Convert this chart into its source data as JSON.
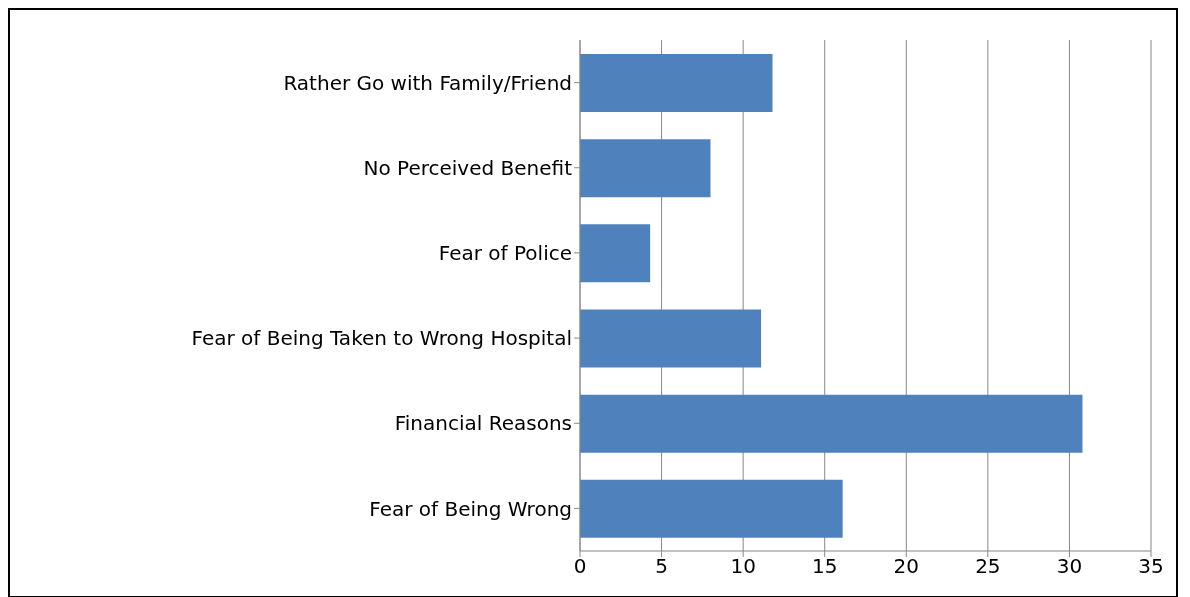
{
  "chart_data": {
    "type": "bar",
    "orientation": "horizontal",
    "categories": [
      "Rather Go with Family/Friend",
      "No Perceived Benefit",
      "Fear of Police",
      "Fear of Being Taken to Wrong Hospital",
      "Financial Reasons",
      "Fear of Being Wrong"
    ],
    "values": [
      11.8,
      8,
      4.3,
      11.1,
      30.8,
      16.1
    ],
    "color": "#4f81bd",
    "xlim": [
      0,
      35
    ],
    "xticks": [
      0,
      5,
      10,
      15,
      20,
      25,
      30,
      35
    ],
    "grid": "x"
  }
}
